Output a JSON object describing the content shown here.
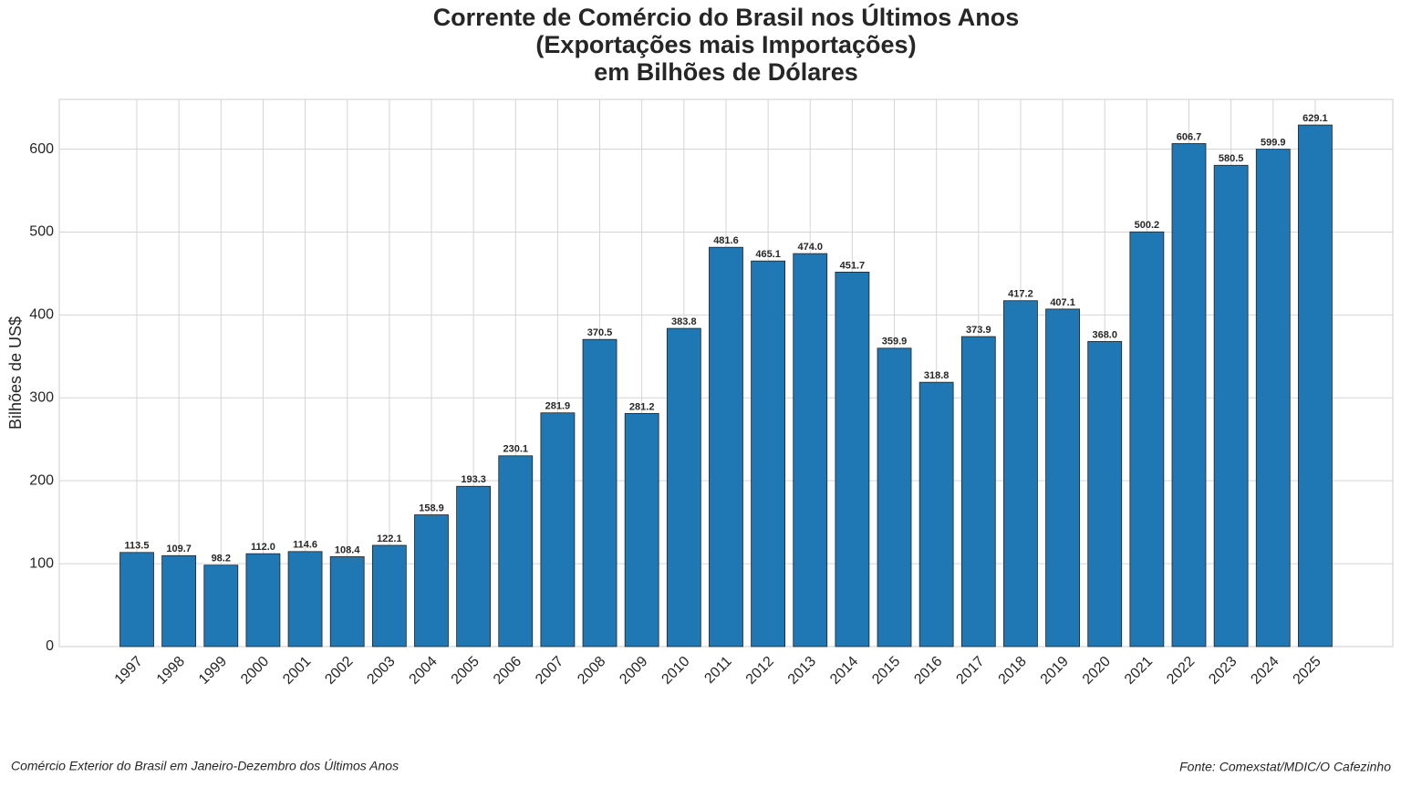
{
  "chart_data": {
    "type": "bar",
    "title": [
      "Corrente de Comércio do Brasil nos Últimos Anos",
      "(Exportações mais Importações)",
      "em Bilhões de Dólares"
    ],
    "y_label": "Bilhões de US$",
    "categories": [
      "1997",
      "1998",
      "1999",
      "2000",
      "2001",
      "2002",
      "2003",
      "2004",
      "2005",
      "2006",
      "2007",
      "2008",
      "2009",
      "2010",
      "2011",
      "2012",
      "2013",
      "2014",
      "2015",
      "2016",
      "2017",
      "2018",
      "2019",
      "2020",
      "2021",
      "2022",
      "2023",
      "2024",
      "2025"
    ],
    "values": [
      113.5,
      109.7,
      98.2,
      112.0,
      114.6,
      108.4,
      122.1,
      158.9,
      193.3,
      230.1,
      281.9,
      370.5,
      281.2,
      383.8,
      481.6,
      465.1,
      474.0,
      451.7,
      359.9,
      318.8,
      373.9,
      417.2,
      407.1,
      368.0,
      500.2,
      606.7,
      580.5,
      599.9,
      629.1
    ],
    "value_labels": [
      "113.5",
      "109.7",
      "98.2",
      "112.0",
      "114.6",
      "108.4",
      "122.1",
      "158.9",
      "193.3",
      "230.1",
      "281.9",
      "370.5",
      "281.2",
      "383.8",
      "481.6",
      "465.1",
      "474.0",
      "451.7",
      "359.9",
      "318.8",
      "373.9",
      "417.2",
      "407.1",
      "368.0",
      "500.2",
      "606.7",
      "580.5",
      "599.9",
      "629.1"
    ],
    "color": "#1f77b4",
    "ylim": [
      0,
      660
    ],
    "yticks": [
      0,
      100,
      200,
      300,
      400,
      500,
      600
    ],
    "grid": true,
    "footnote": "Comércio Exterior do Brasil em Janeiro-Dezembro dos Últimos Anos",
    "source": "Fonte: Comexstat/MDIC/O Cafezinho"
  }
}
